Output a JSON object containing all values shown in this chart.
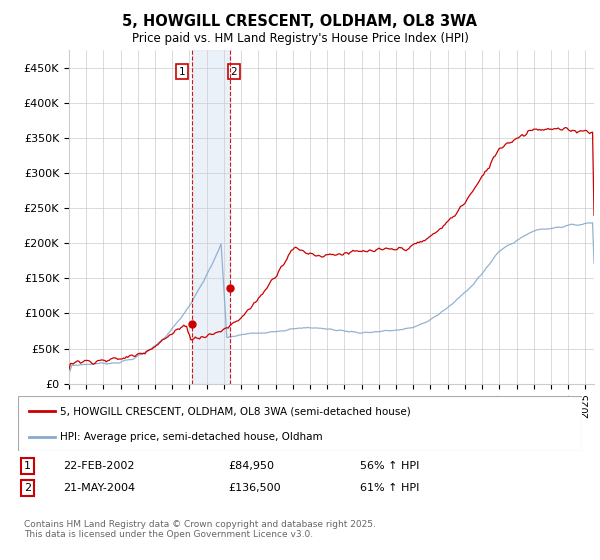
{
  "title_line1": "5, HOWGILL CRESCENT, OLDHAM, OL8 3WA",
  "title_line2": "Price paid vs. HM Land Registry's House Price Index (HPI)",
  "ylim": [
    0,
    475000
  ],
  "yticks": [
    0,
    50000,
    100000,
    150000,
    200000,
    250000,
    300000,
    350000,
    400000,
    450000
  ],
  "ytick_labels": [
    "£0",
    "£50K",
    "£100K",
    "£150K",
    "£200K",
    "£250K",
    "£300K",
    "£350K",
    "£400K",
    "£450K"
  ],
  "red_line_color": "#cc0000",
  "blue_line_color": "#88aacc",
  "shaded_color": "#c8d8f0",
  "dashed_color": "#cc0000",
  "point1_x": 2002.12,
  "point1_y": 84950,
  "point2_x": 2004.37,
  "point2_y": 136500,
  "shade_x1": 2002.12,
  "shade_x2": 2004.37,
  "legend_label_red": "5, HOWGILL CRESCENT, OLDHAM, OL8 3WA (semi-detached house)",
  "legend_label_blue": "HPI: Average price, semi-detached house, Oldham",
  "table_row1": [
    "1",
    "22-FEB-2002",
    "£84,950",
    "56% ↑ HPI"
  ],
  "table_row2": [
    "2",
    "21-MAY-2004",
    "£136,500",
    "61% ↑ HPI"
  ],
  "footnote": "Contains HM Land Registry data © Crown copyright and database right 2025.\nThis data is licensed under the Open Government Licence v3.0.",
  "background_color": "#ffffff",
  "grid_color": "#cccccc",
  "xmin": 1995,
  "xmax": 2025.5
}
